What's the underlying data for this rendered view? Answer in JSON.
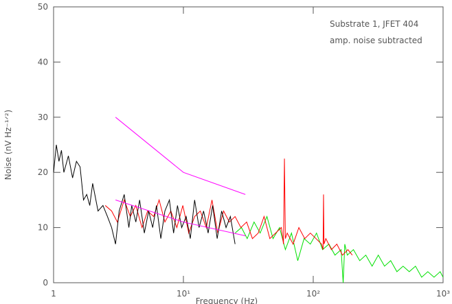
{
  "chart_data": {
    "type": "line",
    "xlog": true,
    "x_label": "Frequency (Hz)",
    "y_label": "Noise (nV Hz⁻¹ᐟ²)",
    "annotations": [
      "Substrate 1, JFET 404",
      "amp. noise subtracted"
    ],
    "xlim": [
      1,
      1000
    ],
    "ylim": [
      0,
      50
    ],
    "xticks": [
      1,
      {
        "value": 10,
        "label": "10¹"
      },
      {
        "value": 100,
        "label": "10²"
      },
      {
        "value": 1000,
        "label": "10³"
      }
    ],
    "yticks": [
      0,
      10,
      20,
      30,
      40,
      50
    ],
    "series": [
      {
        "color": "#00e000",
        "x": [
          25,
          28,
          31,
          35,
          39,
          44,
          49,
          55,
          61,
          68,
          76,
          85,
          95,
          106,
          118,
          132,
          147,
          164,
          170,
          175,
          183,
          204,
          228,
          254,
          284,
          317,
          354,
          395,
          441,
          492,
          549,
          613,
          684,
          763,
          852,
          950,
          1000
        ],
        "values": [
          9,
          10,
          8,
          11,
          9,
          12,
          8,
          10,
          6,
          9,
          4,
          8,
          7,
          9,
          6,
          7,
          5,
          6,
          0,
          7,
          5,
          6,
          4,
          5,
          3,
          5,
          3,
          4,
          2,
          3,
          2,
          3,
          1,
          2,
          1,
          2,
          1
        ]
      },
      {
        "color": "#ff0000",
        "x": [
          2.5,
          2.8,
          3.1,
          3.5,
          3.9,
          4.3,
          4.8,
          5.3,
          5.9,
          6.5,
          7.2,
          8,
          8.9,
          9.9,
          11,
          12.2,
          13.5,
          15,
          16.6,
          18.4,
          20.4,
          22.6,
          25,
          27.7,
          30.7,
          34,
          37.7,
          41.8,
          46.3,
          51.3,
          56.8,
          59,
          60,
          61,
          63,
          70,
          77.5,
          86,
          95,
          105,
          116,
          119,
          120,
          121,
          125,
          138,
          152,
          168,
          185,
          200
        ],
        "values": [
          14,
          13,
          11,
          15,
          12,
          14,
          10,
          13,
          12,
          15,
          11,
          13,
          10,
          14,
          9,
          12,
          13,
          10,
          15,
          9,
          13,
          11,
          12,
          10,
          11,
          8,
          9,
          12,
          8,
          9,
          10,
          7,
          22.5,
          8,
          9,
          7,
          10,
          8,
          9,
          8,
          7,
          6,
          16,
          7,
          8,
          6,
          7,
          5,
          6,
          5
        ]
      },
      {
        "color": "#000000",
        "x": [
          1,
          1.05,
          1.1,
          1.15,
          1.2,
          1.3,
          1.4,
          1.5,
          1.6,
          1.7,
          1.8,
          1.9,
          2,
          2.2,
          2.4,
          2.6,
          2.8,
          3,
          3.2,
          3.5,
          3.8,
          4,
          4.3,
          4.6,
          5,
          5.4,
          5.8,
          6.2,
          6.7,
          7.2,
          7.8,
          8.4,
          9,
          9.7,
          10.5,
          11.3,
          12.2,
          13.2,
          14.3,
          15.5,
          16.8,
          18.2,
          19.7,
          21.3,
          23,
          25
        ],
        "values": [
          20,
          25,
          22,
          24,
          20,
          23,
          19,
          22,
          21,
          15,
          16,
          14,
          18,
          13,
          14,
          12,
          10,
          7,
          13,
          16,
          10,
          14,
          11,
          15,
          9,
          13,
          10,
          14,
          8,
          13,
          15,
          9,
          14,
          10,
          12,
          8,
          15,
          10,
          13,
          9,
          14,
          8,
          13,
          10,
          12,
          7
        ]
      },
      {
        "color": "#ff00ff",
        "x": [
          3,
          10,
          30
        ],
        "values": [
          30,
          20,
          16
        ]
      },
      {
        "color": "#ff00ff",
        "x": [
          3,
          10,
          30
        ],
        "values": [
          15,
          11,
          8.5
        ]
      }
    ]
  }
}
